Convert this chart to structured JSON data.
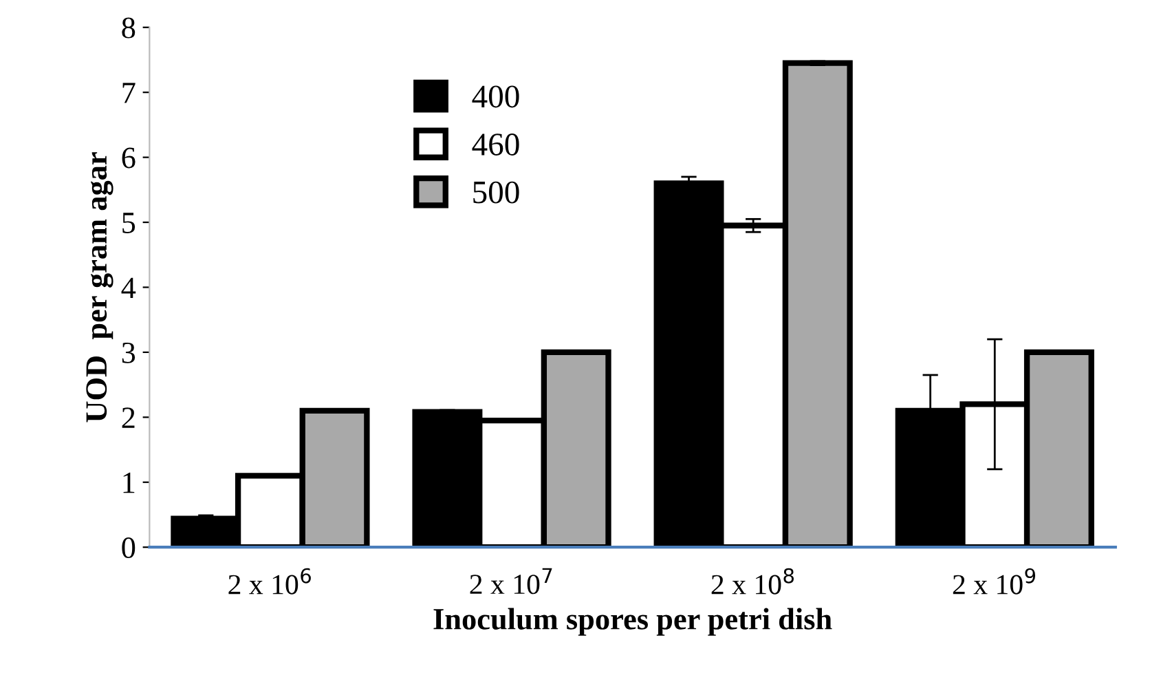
{
  "chart_data": {
    "type": "bar",
    "xlabel": "Inoculum spores per petri dish",
    "ylabel": "UOD  per gram agar",
    "categories": [
      "2 x 10$^{6}$",
      "2 x 10$^{7}$",
      "2 x 10$^{8}$",
      "2 x 10$^{9}$"
    ],
    "series": [
      {
        "name": "400",
        "color": "#000000",
        "values": [
          0.44,
          2.08,
          5.6,
          2.1
        ],
        "errors": [
          0.05,
          0.03,
          0.1,
          0.55
        ]
      },
      {
        "name": "460",
        "color": "#ffffff",
        "values": [
          1.1,
          1.95,
          4.95,
          2.2
        ],
        "errors": [
          null,
          null,
          0.1,
          1.0
        ]
      },
      {
        "name": "500",
        "color": "#a9a9a9",
        "values": [
          2.1,
          3.0,
          7.45,
          3.0
        ],
        "errors": [
          null,
          null,
          0.03,
          null
        ]
      }
    ],
    "ylim": [
      0,
      8
    ],
    "yticks": [
      0,
      1,
      2,
      3,
      4,
      5,
      6,
      7,
      8
    ],
    "grid": false,
    "legend": "top"
  }
}
